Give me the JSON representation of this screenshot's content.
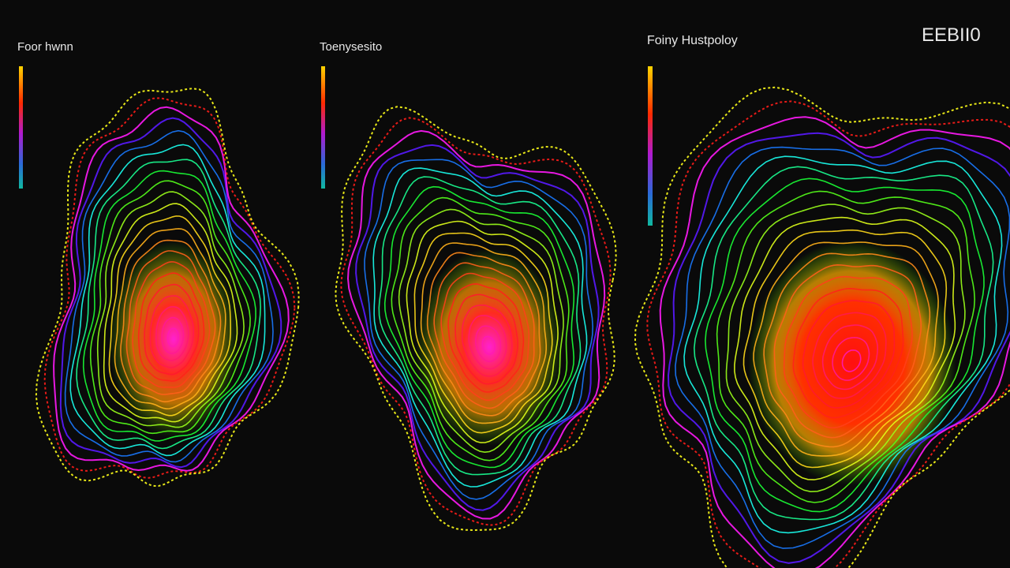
{
  "panels": [
    {
      "title": "Foor hwnn"
    },
    {
      "title": "Toenysesito"
    },
    {
      "title": "Foiny Hustpoloy"
    }
  ],
  "corner_text": "EEBII0"
}
